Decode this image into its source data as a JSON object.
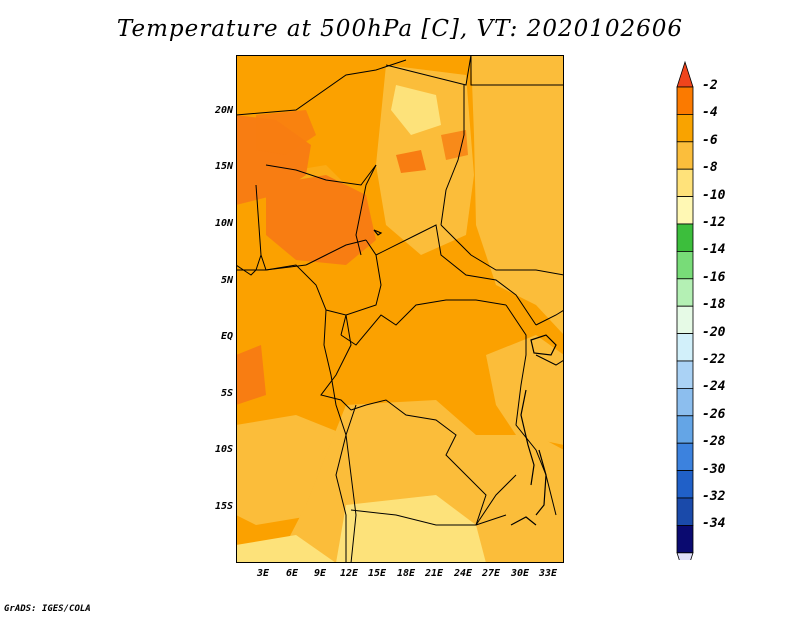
{
  "title": "Temperature at 500hPa [C], VT: 2020102606",
  "credit": "GrADS: IGES/COLA",
  "lat_labels": [
    "20N",
    "15N",
    "10N",
    "5N",
    "EQ",
    "5S",
    "10S",
    "15S"
  ],
  "lon_labels": [
    "3E",
    "6E",
    "9E",
    "12E",
    "15E",
    "18E",
    "21E",
    "24E",
    "27E",
    "30E",
    "33E"
  ],
  "colorbar": {
    "labels": [
      "-2",
      "-4",
      "-6",
      "-8",
      "-10",
      "-12",
      "-14",
      "-16",
      "-18",
      "-20",
      "-22",
      "-24",
      "-26",
      "-28",
      "-30",
      "-32",
      "-34"
    ],
    "colors": [
      "#f0441c",
      "#fb7a00",
      "#f9a300",
      "#fbbe3c",
      "#ffe27a",
      "#fff8b4",
      "#3cbe3c",
      "#78dc78",
      "#b4f0b4",
      "#e6fae6",
      "#d2f0fa",
      "#aad2f5",
      "#8cbeee",
      "#64a5e6",
      "#3c82de",
      "#2060c8",
      "#1a4aaa",
      "#0a0a70",
      "#e0e0f8"
    ]
  },
  "map": {
    "domain": "Central Africa",
    "lon_range": [
      0,
      34
    ],
    "lat_range": [
      -19,
      25
    ],
    "colors": {
      "dominant": "#fba100",
      "warm": "#f87d12",
      "cool": "#fbbd3a",
      "coolest": "#fde27a"
    }
  }
}
